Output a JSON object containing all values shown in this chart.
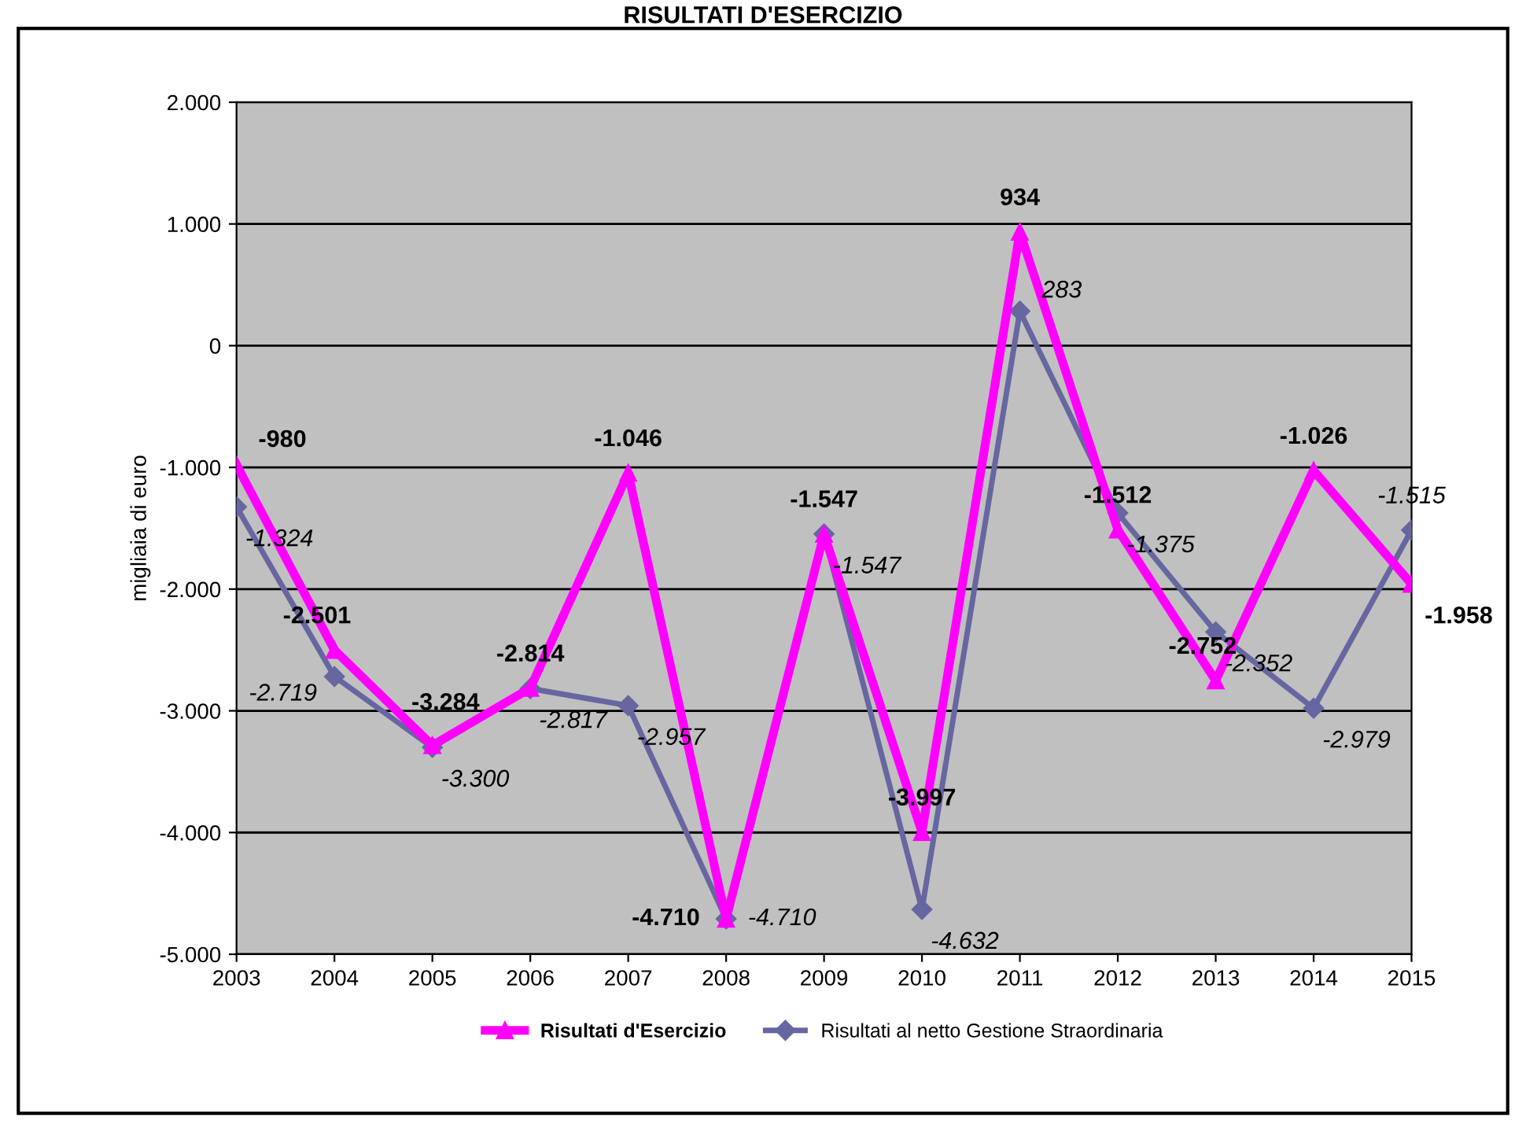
{
  "chart_data": {
    "type": "line",
    "title": "RISULTATI D'ESERCIZIO",
    "ylabel": "migliaia di euro",
    "categories": [
      "2003",
      "2004",
      "2005",
      "2006",
      "2007",
      "2008",
      "2009",
      "2010",
      "2011",
      "2012",
      "2013",
      "2014",
      "2015"
    ],
    "series": [
      {
        "name": "Risultati d'Esercizio",
        "color": "#ff00ff",
        "marker": "triangle",
        "values": [
          -980,
          -2501,
          -3284,
          -2814,
          -1046,
          -4710,
          -1547,
          -3997,
          934,
          -1512,
          -2752,
          -1026,
          -1958
        ],
        "value_labels": [
          "-980",
          "-2.501",
          "-3.284",
          "-2.814",
          "-1.046",
          "-4.710",
          "-1.547",
          "-3.997",
          "934",
          "-1.512",
          "-2.752",
          "-1.026",
          "-1.958"
        ]
      },
      {
        "name": "Risultati al netto Gestione Straordinaria",
        "color": "#6666a0",
        "marker": "diamond",
        "values": [
          -1324,
          -2719,
          -3300,
          -2817,
          -2957,
          -4710,
          -1547,
          -4632,
          283,
          -1375,
          -2352,
          -2979,
          -1515
        ],
        "value_labels": [
          "-1.324",
          "-2.719",
          "-3.300",
          "-2.817",
          "-2.957",
          "-4.710",
          "-1.547",
          "-4.632",
          "283",
          "-1.375",
          "-2.352",
          "-2.979",
          "-1.515"
        ]
      }
    ],
    "ylim": [
      -5000,
      2000
    ],
    "yticks": [
      {
        "value": -5000,
        "label": "-5.000"
      },
      {
        "value": -4000,
        "label": "-4.000"
      },
      {
        "value": -3000,
        "label": "-3.000"
      },
      {
        "value": -2000,
        "label": "-2.000"
      },
      {
        "value": -1000,
        "label": "-1.000"
      },
      {
        "value": 0,
        "label": "0"
      },
      {
        "value": 1000,
        "label": "1.000"
      },
      {
        "value": 2000,
        "label": "2.000"
      }
    ],
    "grid": "y",
    "legend": "bottom"
  }
}
